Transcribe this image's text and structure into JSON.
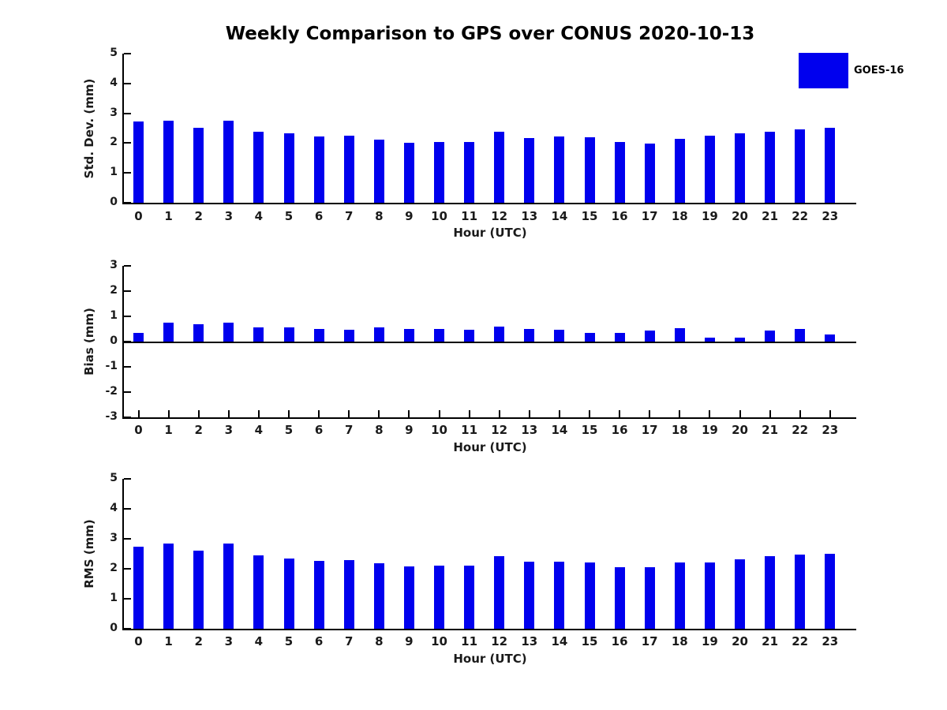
{
  "title": "Weekly Comparison to GPS over CONUS 2020-10-13",
  "legend": {
    "label": "GOES-16",
    "color": "#0000EE"
  },
  "chart_data": [
    {
      "type": "bar",
      "title": "",
      "ylabel": "Std. Dev. (mm)",
      "xlabel": "Hour (UTC)",
      "categories": [
        "0",
        "1",
        "2",
        "3",
        "4",
        "5",
        "6",
        "7",
        "8",
        "9",
        "10",
        "11",
        "12",
        "13",
        "14",
        "15",
        "16",
        "17",
        "18",
        "19",
        "20",
        "21",
        "22",
        "23"
      ],
      "series": [
        {
          "name": "GOES-16",
          "values": [
            2.73,
            2.76,
            2.52,
            2.76,
            2.39,
            2.32,
            2.21,
            2.26,
            2.12,
            2.01,
            2.04,
            2.04,
            2.38,
            2.17,
            2.21,
            2.2,
            2.04,
            1.99,
            2.14,
            2.24,
            2.33,
            2.37,
            2.46,
            2.51
          ]
        }
      ],
      "ylim": [
        0,
        5
      ],
      "yticks": [
        0,
        1,
        2,
        3,
        4,
        5
      ],
      "bar_color": "#0000EE",
      "grid": false,
      "legend_position": "top-right-outside",
      "zero_line": false
    },
    {
      "type": "bar",
      "title": "",
      "ylabel": "Bias (mm)",
      "xlabel": "Hour (UTC)",
      "categories": [
        "0",
        "1",
        "2",
        "3",
        "4",
        "5",
        "6",
        "7",
        "8",
        "9",
        "10",
        "11",
        "12",
        "13",
        "14",
        "15",
        "16",
        "17",
        "18",
        "19",
        "20",
        "21",
        "22",
        "23"
      ],
      "series": [
        {
          "name": "GOES-16",
          "values": [
            0.33,
            0.76,
            0.7,
            0.75,
            0.55,
            0.55,
            0.51,
            0.46,
            0.55,
            0.51,
            0.51,
            0.48,
            0.58,
            0.5,
            0.48,
            0.33,
            0.33,
            0.45,
            0.52,
            0.17,
            0.17,
            0.45,
            0.51,
            0.28
          ]
        }
      ],
      "ylim": [
        -3,
        3
      ],
      "yticks": [
        -3,
        -2,
        -1,
        0,
        1,
        2,
        3
      ],
      "bar_color": "#0000EE",
      "grid": false,
      "legend_position": "none",
      "zero_line": true
    },
    {
      "type": "bar",
      "title": "",
      "ylabel": "RMS (mm)",
      "xlabel": "Hour (UTC)",
      "categories": [
        "0",
        "1",
        "2",
        "3",
        "4",
        "5",
        "6",
        "7",
        "8",
        "9",
        "10",
        "11",
        "12",
        "13",
        "14",
        "15",
        "16",
        "17",
        "18",
        "19",
        "20",
        "21",
        "22",
        "23"
      ],
      "series": [
        {
          "name": "GOES-16",
          "values": [
            2.73,
            2.83,
            2.61,
            2.83,
            2.44,
            2.35,
            2.27,
            2.3,
            2.19,
            2.09,
            2.11,
            2.11,
            2.43,
            2.23,
            2.24,
            2.21,
            2.04,
            2.04,
            2.21,
            2.21,
            2.32,
            2.41,
            2.48,
            2.51
          ]
        }
      ],
      "ylim": [
        0,
        5
      ],
      "yticks": [
        0,
        1,
        2,
        3,
        4,
        5
      ],
      "bar_color": "#0000EE",
      "grid": false,
      "legend_position": "none",
      "zero_line": false
    }
  ]
}
